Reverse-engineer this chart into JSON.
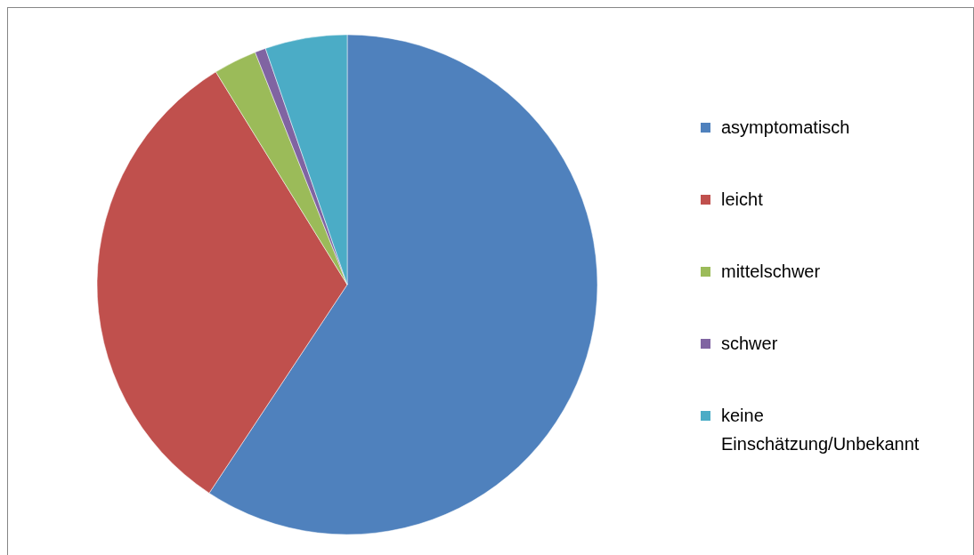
{
  "chart_data": {
    "type": "pie",
    "categories": [
      "asymptomatisch",
      "leicht",
      "mittelschwer",
      "schwer",
      "keine Einschätzung/Unbekannt"
    ],
    "values": [
      59.3,
      31.9,
      2.8,
      0.7,
      5.3
    ],
    "colors": [
      "#4f81bd",
      "#c0504d",
      "#9bbb59",
      "#8064a2",
      "#4bacc6"
    ],
    "legend": "right"
  }
}
